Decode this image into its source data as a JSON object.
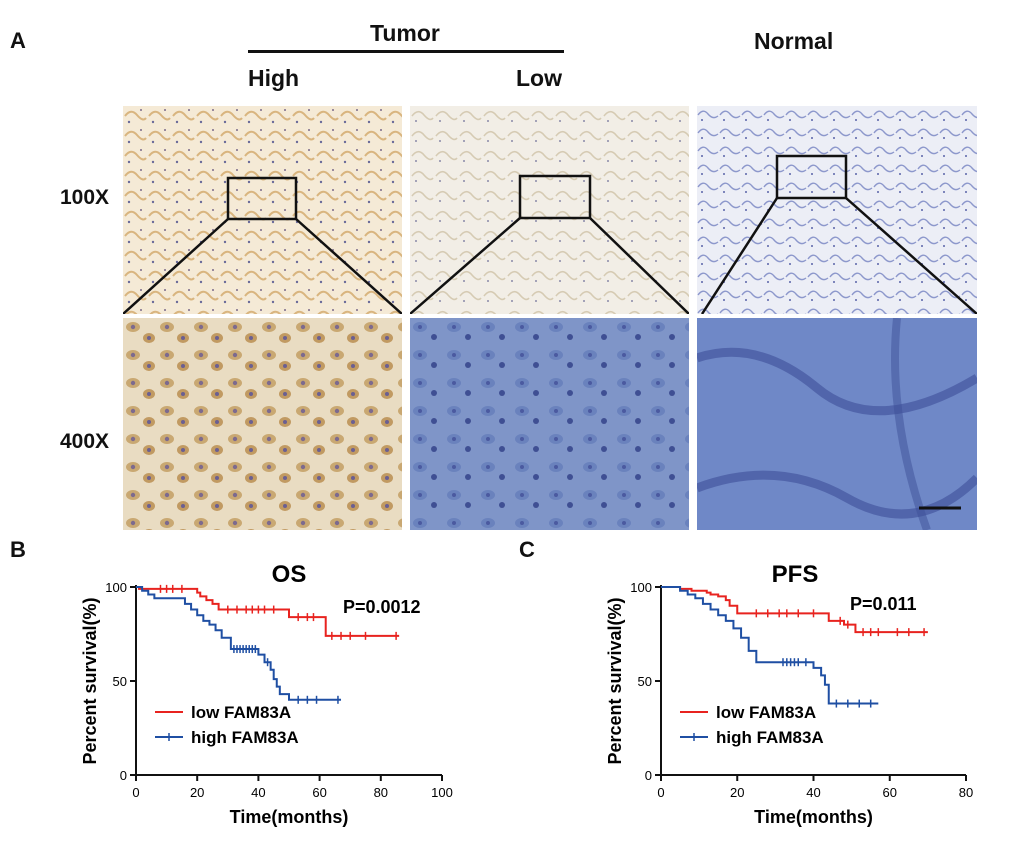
{
  "panels": {
    "a": "A",
    "b": "B",
    "c": "C"
  },
  "ihc": {
    "group_tumor": "Tumor",
    "group_normal": "Normal",
    "col_high": "High",
    "col_low": "Low",
    "row_100x": "100X",
    "row_400x": "400X"
  },
  "colors": {
    "low": "#e8231f",
    "high": "#1f4fa3",
    "dab_bg": "#f3e6cf",
    "hema_bg": "#e6e8f3",
    "blue_field": "#6e86c4"
  },
  "chart_data": [
    {
      "type": "line",
      "title": "OS",
      "annotation": "P=0.0012",
      "xlabel": "Time(months)",
      "ylabel": "Percent survival(%)",
      "xlim": [
        0,
        100
      ],
      "ylim": [
        0,
        100
      ],
      "xticks": [
        0,
        20,
        40,
        60,
        80,
        100
      ],
      "yticks": [
        0,
        50,
        100
      ],
      "legend_position": "bottom-left",
      "series": [
        {
          "name": "low FAM83A",
          "color": "#e8231f",
          "x": [
            0,
            1,
            19,
            20,
            21,
            23,
            25,
            27,
            50,
            62,
            86
          ],
          "y": [
            100,
            99,
            99,
            97,
            95,
            93,
            91,
            88,
            84,
            74,
            74
          ],
          "censor_x": [
            8,
            10,
            12,
            15,
            30,
            33,
            36,
            38,
            40,
            42,
            45,
            53,
            56,
            58,
            64,
            67,
            70,
            75,
            85
          ]
        },
        {
          "name": "high FAM83A",
          "color": "#1f4fa3",
          "x": [
            0,
            2,
            4,
            6,
            16,
            18,
            20,
            22,
            24,
            26,
            28,
            31,
            40,
            42,
            44,
            45,
            46,
            47,
            50,
            67
          ],
          "y": [
            100,
            98,
            96,
            94,
            91,
            88,
            85,
            82,
            80,
            77,
            73,
            67,
            64,
            60,
            56,
            51,
            47,
            43,
            40,
            40
          ],
          "censor_x": [
            32,
            33,
            34,
            35,
            36,
            37,
            38,
            39,
            43,
            53,
            56,
            59,
            66
          ]
        }
      ]
    },
    {
      "type": "line",
      "title": "PFS",
      "annotation": "P=0.011",
      "xlabel": "Time(months)",
      "ylabel": "Percent survival(%)",
      "xlim": [
        0,
        80
      ],
      "ylim": [
        0,
        100
      ],
      "xticks": [
        0,
        20,
        40,
        60,
        80
      ],
      "yticks": [
        0,
        50,
        100
      ],
      "legend_position": "bottom-left",
      "series": [
        {
          "name": "low FAM83A",
          "color": "#e8231f",
          "x": [
            0,
            5,
            8,
            12,
            13,
            15,
            17,
            18,
            20,
            44,
            48,
            51,
            70
          ],
          "y": [
            100,
            99,
            98,
            97,
            96,
            95,
            93,
            90,
            86,
            82,
            80,
            76,
            76
          ],
          "censor_x": [
            25,
            28,
            31,
            33,
            36,
            40,
            47,
            49,
            53,
            55,
            57,
            62,
            65,
            69
          ]
        },
        {
          "name": "high FAM83A",
          "color": "#1f4fa3",
          "x": [
            0,
            5,
            7,
            9,
            11,
            13,
            15,
            17,
            19,
            21,
            23,
            25,
            30,
            40,
            42,
            43,
            44,
            57
          ],
          "y": [
            100,
            98,
            96,
            94,
            91,
            88,
            85,
            82,
            78,
            73,
            66,
            60,
            60,
            57,
            53,
            48,
            38,
            38
          ],
          "censor_x": [
            32,
            33,
            34,
            35,
            36,
            38,
            46,
            49,
            52,
            55
          ]
        }
      ]
    }
  ]
}
